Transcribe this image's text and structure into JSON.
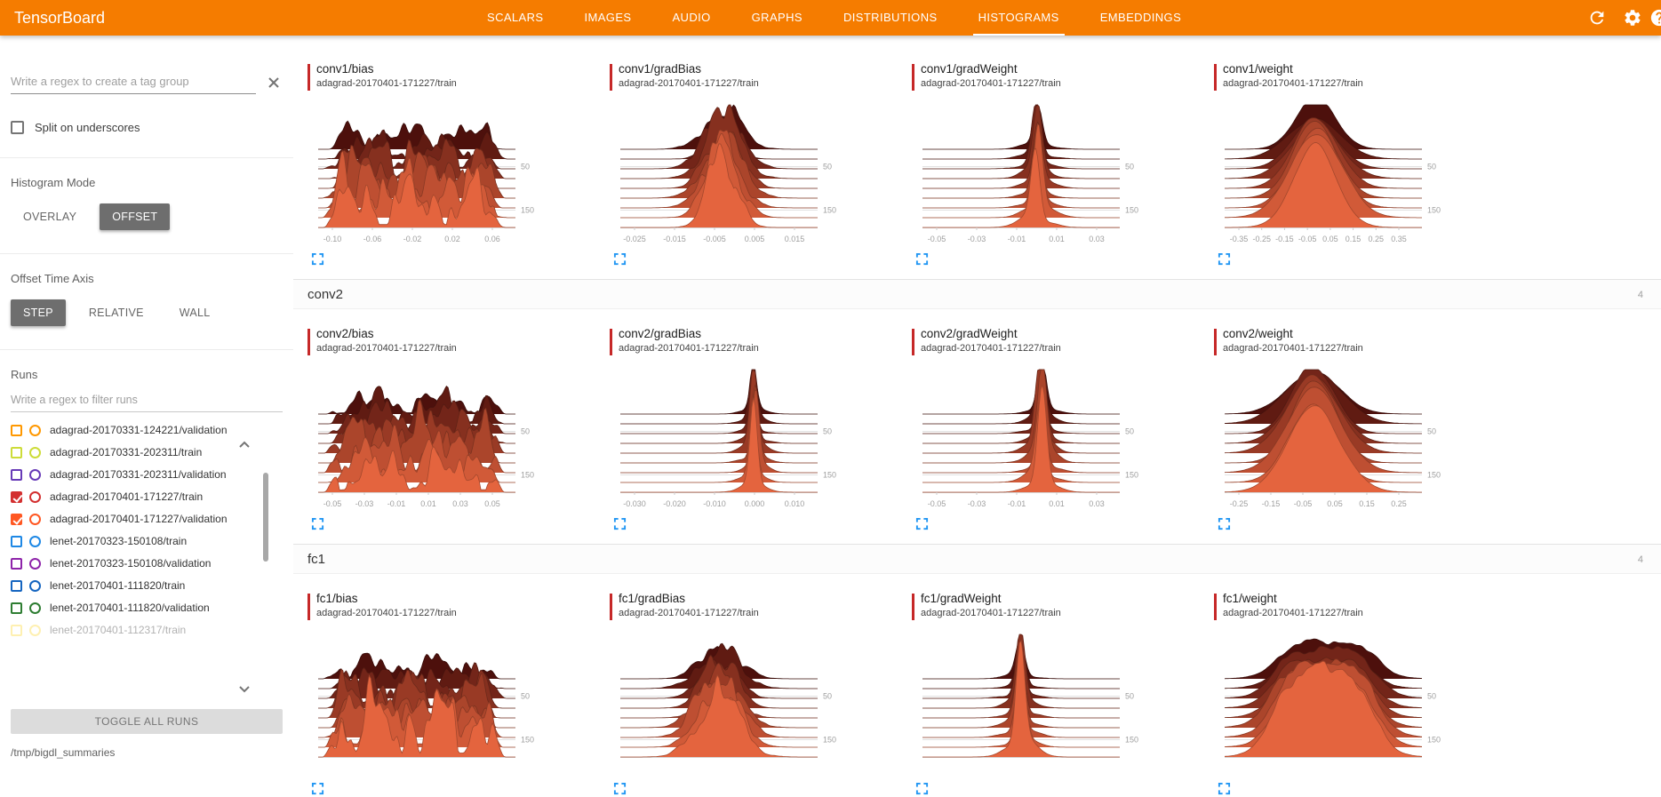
{
  "app": {
    "title": "TensorBoard"
  },
  "colors": {
    "toolbar": "#f57c00",
    "accent_blue": "#2196f3",
    "selected_run_color": "#c62828",
    "ridge_dark": "#4d100c",
    "ridge_light": "#e4643e"
  },
  "nav": {
    "active": "HISTOGRAMS",
    "tabs": [
      {
        "label": "SCALARS"
      },
      {
        "label": "IMAGES"
      },
      {
        "label": "AUDIO"
      },
      {
        "label": "GRAPHS"
      },
      {
        "label": "DISTRIBUTIONS"
      },
      {
        "label": "HISTOGRAMS"
      },
      {
        "label": "EMBEDDINGS"
      }
    ],
    "toolbar_icons": [
      "refresh-icon",
      "settings-icon",
      "help-icon"
    ]
  },
  "sidebar": {
    "tag_filter": {
      "placeholder": "Write a regex to create a tag group",
      "value": ""
    },
    "split_on_underscores": {
      "label": "Split on underscores",
      "checked": false
    },
    "histogram_mode": {
      "label": "Histogram Mode",
      "options": [
        "OVERLAY",
        "OFFSET"
      ],
      "selected": "OFFSET"
    },
    "offset_time_axis": {
      "label": "Offset Time Axis",
      "options": [
        "STEP",
        "RELATIVE",
        "WALL"
      ],
      "selected": "STEP"
    },
    "runs": {
      "label": "Runs",
      "filter": {
        "placeholder": "Write a regex to filter runs",
        "value": ""
      },
      "items": [
        {
          "label": "adagrad-20170331-124221/validation",
          "color": "#ff9800",
          "checked": false
        },
        {
          "label": "adagrad-20170331-202311/train",
          "color": "#cddc39",
          "checked": false
        },
        {
          "label": "adagrad-20170331-202311/validation",
          "color": "#673ab7",
          "checked": false
        },
        {
          "label": "adagrad-20170401-171227/train",
          "color": "#d32f2f",
          "checked": true
        },
        {
          "label": "adagrad-20170401-171227/validation",
          "color": "#ff5722",
          "checked": true
        },
        {
          "label": "lenet-20170323-150108/train",
          "color": "#1e88e5",
          "checked": false
        },
        {
          "label": "lenet-20170323-150108/validation",
          "color": "#8e24aa",
          "checked": false
        },
        {
          "label": "lenet-20170401-111820/train",
          "color": "#1565c0",
          "checked": false
        },
        {
          "label": "lenet-20170401-111820/validation",
          "color": "#2e7d32",
          "checked": false
        },
        {
          "label": "lenet-20170401-112317/train",
          "color": "#fdd835",
          "checked": false
        }
      ],
      "toggle_all_label": "TOGGLE ALL RUNS",
      "log_dir": "/tmp/bigdl_summaries"
    }
  },
  "main": {
    "selected_run": "adagrad-20170401-171227/train",
    "groups": [
      {
        "name": "",
        "count": "",
        "card_ids": [
          0,
          1,
          2,
          3
        ]
      },
      {
        "name": "conv2",
        "count": "4",
        "card_ids": [
          4,
          5,
          6,
          7
        ]
      },
      {
        "name": "fc1",
        "count": "4",
        "card_ids": [
          8,
          9,
          10,
          11
        ]
      }
    ]
  },
  "chart_data": [
    {
      "type": "histogram-ridgeline",
      "title": "conv1/bias",
      "run": "adagrad-20170401-171227/train",
      "mode": "offset",
      "x_ticks": [
        "-0.10",
        "-0.06",
        "-0.02",
        "0.02",
        "0.06"
      ],
      "y_ticks": [
        "50",
        "150"
      ],
      "layers": 9,
      "shape": {
        "kind": "jagged",
        "center": 0.5,
        "width": 0.3
      },
      "seed": 3
    },
    {
      "type": "histogram-ridgeline",
      "title": "conv1/gradBias",
      "run": "adagrad-20170401-171227/train",
      "mode": "offset",
      "x_ticks": [
        "-0.025",
        "-0.015",
        "-0.005",
        "0.005",
        "0.015"
      ],
      "y_ticks": [
        "50",
        "150"
      ],
      "layers": 9,
      "shape": {
        "kind": "peak",
        "center": 0.52,
        "width": 0.085
      },
      "seed": 7
    },
    {
      "type": "histogram-ridgeline",
      "title": "conv1/gradWeight",
      "run": "adagrad-20170401-171227/train",
      "mode": "offset",
      "x_ticks": [
        "-0.05",
        "-0.03",
        "-0.01",
        "0.01",
        "0.03"
      ],
      "y_ticks": [
        "50",
        "150"
      ],
      "layers": 9,
      "shape": {
        "kind": "spike",
        "center": 0.58,
        "width": 0.022
      },
      "seed": 11
    },
    {
      "type": "histogram-ridgeline",
      "title": "conv1/weight",
      "run": "adagrad-20170401-171227/train",
      "mode": "offset",
      "x_ticks": [
        "-0.35",
        "-0.25",
        "-0.15",
        "-0.05",
        "0.05",
        "0.15",
        "0.25",
        "0.35"
      ],
      "y_ticks": [
        "50",
        "150"
      ],
      "layers": 9,
      "shape": {
        "kind": "bell",
        "center": 0.46,
        "width": 0.12
      },
      "seed": 13
    },
    {
      "type": "histogram-ridgeline",
      "title": "conv2/bias",
      "run": "adagrad-20170401-171227/train",
      "mode": "offset",
      "x_ticks": [
        "-0.05",
        "-0.03",
        "-0.01",
        "0.01",
        "0.03",
        "0.05"
      ],
      "y_ticks": [
        "50",
        "150"
      ],
      "layers": 9,
      "shape": {
        "kind": "jagged",
        "center": 0.5,
        "width": 0.3
      },
      "seed": 17
    },
    {
      "type": "histogram-ridgeline",
      "title": "conv2/gradBias",
      "run": "adagrad-20170401-171227/train",
      "mode": "offset",
      "x_ticks": [
        "-0.030",
        "-0.020",
        "-0.010",
        "0.000",
        "0.010"
      ],
      "y_ticks": [
        "50",
        "150"
      ],
      "layers": 9,
      "shape": {
        "kind": "spike",
        "center": 0.68,
        "width": 0.018
      },
      "seed": 19
    },
    {
      "type": "histogram-ridgeline",
      "title": "conv2/gradWeight",
      "run": "adagrad-20170401-171227/train",
      "mode": "offset",
      "x_ticks": [
        "-0.05",
        "-0.03",
        "-0.01",
        "0.01",
        "0.03"
      ],
      "y_ticks": [
        "50",
        "150"
      ],
      "layers": 9,
      "shape": {
        "kind": "spike",
        "center": 0.6,
        "width": 0.022
      },
      "seed": 23
    },
    {
      "type": "histogram-ridgeline",
      "title": "conv2/weight",
      "run": "adagrad-20170401-171227/train",
      "mode": "offset",
      "x_ticks": [
        "-0.25",
        "-0.15",
        "-0.05",
        "0.05",
        "0.15",
        "0.25"
      ],
      "y_ticks": [
        "50",
        "150"
      ],
      "layers": 9,
      "shape": {
        "kind": "bell",
        "center": 0.45,
        "width": 0.13
      },
      "seed": 29
    },
    {
      "type": "histogram-ridgeline",
      "title": "fc1/bias",
      "run": "adagrad-20170401-171227/train",
      "mode": "offset",
      "x_ticks": [],
      "y_ticks": [
        "50",
        "150"
      ],
      "layers": 9,
      "shape": {
        "kind": "jagged",
        "center": 0.5,
        "width": 0.3
      },
      "seed": 31
    },
    {
      "type": "histogram-ridgeline",
      "title": "fc1/gradBias",
      "run": "adagrad-20170401-171227/train",
      "mode": "offset",
      "x_ticks": [],
      "y_ticks": [
        "50",
        "150"
      ],
      "layers": 9,
      "shape": {
        "kind": "peak",
        "center": 0.5,
        "width": 0.1
      },
      "seed": 37
    },
    {
      "type": "histogram-ridgeline",
      "title": "fc1/gradWeight",
      "run": "adagrad-20170401-171227/train",
      "mode": "offset",
      "x_ticks": [],
      "y_ticks": [
        "50",
        "150"
      ],
      "layers": 9,
      "shape": {
        "kind": "spike",
        "center": 0.5,
        "width": 0.022
      },
      "seed": 41
    },
    {
      "type": "histogram-ridgeline",
      "title": "fc1/weight",
      "run": "adagrad-20170401-171227/train",
      "mode": "offset",
      "x_ticks": [],
      "y_ticks": [
        "50",
        "150"
      ],
      "layers": 9,
      "shape": {
        "kind": "plateau",
        "center": 0.5,
        "width": 0.5
      },
      "seed": 43
    }
  ]
}
